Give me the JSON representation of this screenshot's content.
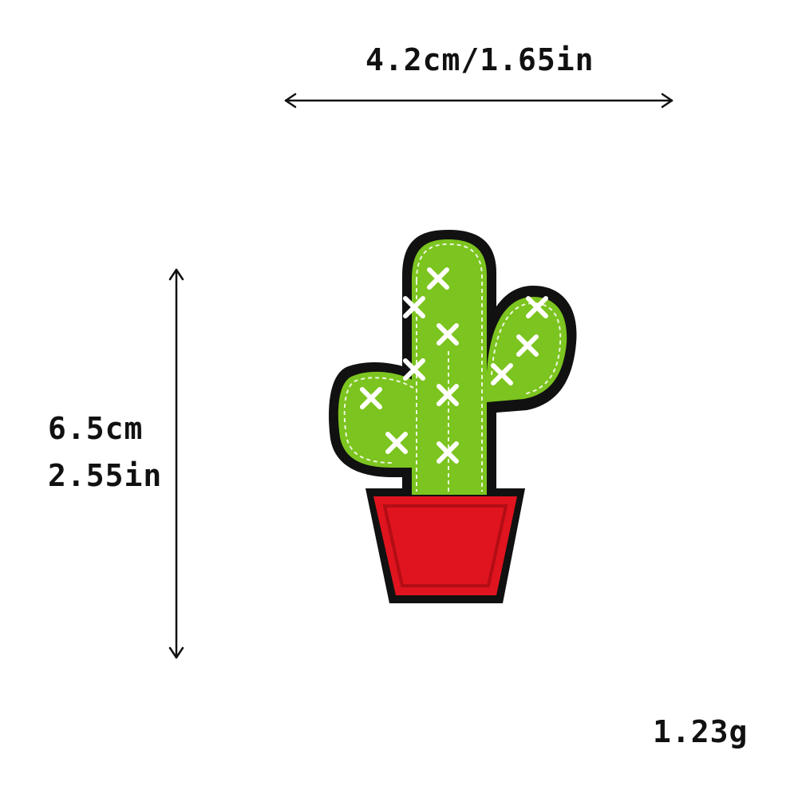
{
  "dimensions": {
    "width_label": "4.2cm/1.65in",
    "height_cm_label": "6.5cm",
    "height_in_label": "2.55in"
  },
  "weight_label": "1.23g",
  "product": {
    "name": "cactus-embroidered-patch",
    "colors": {
      "cactus_green": "#7cc41f",
      "cactus_dark": "#5fa114",
      "pot_red": "#e0141e",
      "pot_dark": "#b30d15",
      "border": "#111111",
      "stitch": "#ffffff"
    }
  }
}
